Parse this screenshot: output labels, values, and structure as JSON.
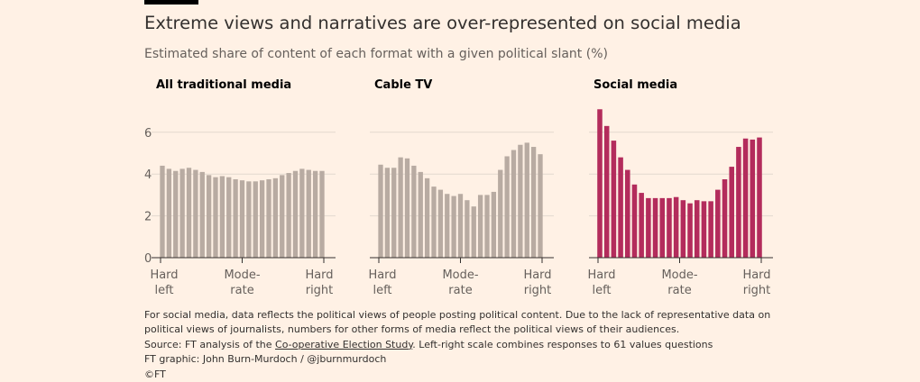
{
  "header": {
    "title": "Extreme views and narratives are over-represented on social media",
    "subtitle": "Estimated share of content of each format with a given political slant (%)"
  },
  "colors": {
    "background": "#fff1e5",
    "traditional_bar": "#b8aba2",
    "social_bar": "#b32c5c",
    "grid": "#e3d9cf"
  },
  "chart_data": [
    {
      "type": "bar",
      "title": "All traditional media",
      "ylim": [
        0,
        7
      ],
      "yticks": [
        0,
        2,
        4,
        6
      ],
      "xtick_labels": [
        [
          "Hard",
          "left"
        ],
        [
          "Mode-",
          "rate"
        ],
        [
          "Hard",
          "right"
        ]
      ],
      "values": [
        4.4,
        4.25,
        4.15,
        4.25,
        4.3,
        4.2,
        4.1,
        3.95,
        3.85,
        3.9,
        3.85,
        3.75,
        3.7,
        3.65,
        3.65,
        3.7,
        3.75,
        3.8,
        3.95,
        4.05,
        4.15,
        4.25,
        4.2,
        4.15,
        4.15
      ],
      "color": "#b8aba2"
    },
    {
      "type": "bar",
      "title": "Cable TV",
      "ylim": [
        0,
        7
      ],
      "yticks": [
        0,
        2,
        4,
        6
      ],
      "xtick_labels": [
        [
          "Hard",
          "left"
        ],
        [
          "Mode-",
          "rate"
        ],
        [
          "Hard",
          "right"
        ]
      ],
      "values": [
        4.45,
        4.3,
        4.3,
        4.8,
        4.75,
        4.4,
        4.1,
        3.8,
        3.4,
        3.25,
        3.05,
        2.95,
        3.05,
        2.75,
        2.45,
        3.0,
        3.0,
        3.15,
        4.2,
        4.85,
        5.15,
        5.4,
        5.5,
        5.3,
        4.95
      ],
      "color": "#b8aba2"
    },
    {
      "type": "bar",
      "title": "Social media",
      "ylim": [
        0,
        7
      ],
      "yticks": [
        0,
        2,
        4,
        6
      ],
      "xtick_labels": [
        [
          "Hard",
          "left"
        ],
        [
          "Mode-",
          "rate"
        ],
        [
          "Hard",
          "right"
        ]
      ],
      "values": [
        7.1,
        6.3,
        5.6,
        4.8,
        4.2,
        3.5,
        3.1,
        2.85,
        2.85,
        2.85,
        2.85,
        2.9,
        2.75,
        2.6,
        2.75,
        2.7,
        2.7,
        3.25,
        3.75,
        4.35,
        5.3,
        5.7,
        5.65,
        5.75
      ],
      "color": "#b32c5c"
    }
  ],
  "footer": {
    "note_line1": "For social media, data reflects the political views of people posting political content. Due to the lack of representative data on",
    "note_line2": "political views of journalists, numbers for other forms of media reflect the political views of their audiences.",
    "source_prefix": "Source: FT analysis of the ",
    "source_link": "Co-operative Election Study",
    "source_suffix": ". Left-right scale combines responses to 61 values questions",
    "credit": "FT graphic: John Burn-Murdoch / @jburnmurdoch",
    "copyright": "©FT"
  }
}
